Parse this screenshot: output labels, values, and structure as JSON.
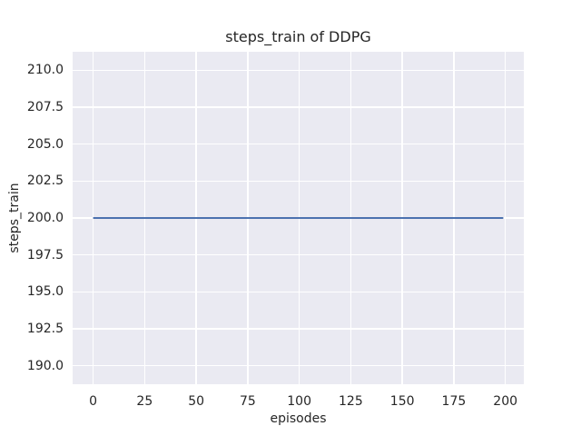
{
  "chart_data": {
    "type": "line",
    "title": "steps_train of DDPG",
    "xlabel": "episodes",
    "ylabel": "steps_train",
    "x_ticks": [
      "0",
      "25",
      "50",
      "75",
      "100",
      "125",
      "150",
      "175",
      "200"
    ],
    "y_ticks": [
      "190.0",
      "192.5",
      "195.0",
      "197.5",
      "200.0",
      "202.5",
      "205.0",
      "207.5",
      "210.0"
    ],
    "xlim": [
      -9.95,
      208.95
    ],
    "ylim": [
      188.75,
      211.25
    ],
    "grid": true,
    "legend_position": "none",
    "series": [
      {
        "name": "steps_train",
        "color": "#4C72B0",
        "x": [
          0,
          199
        ],
        "y": [
          200,
          200
        ]
      }
    ],
    "colors": {
      "figure_bg": "#FFFFFF",
      "axes_bg": "#EAEAF2",
      "grid": "#FFFFFF",
      "text": "#262626"
    }
  }
}
